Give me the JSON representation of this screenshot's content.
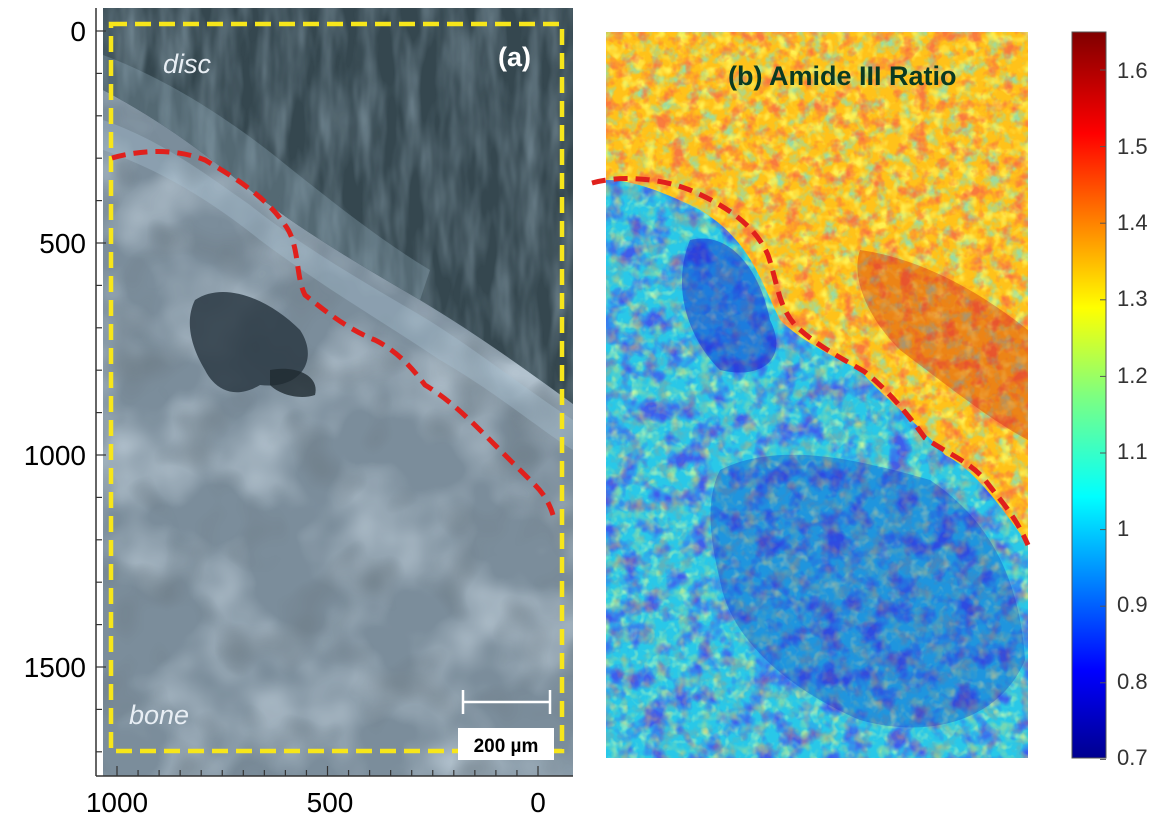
{
  "panel_a": {
    "label": "(a)",
    "text_disc": "disc",
    "text_bone": "bone",
    "scale_bar_label": "200 µm",
    "y_ticks": [
      "0",
      "500",
      "1000",
      "1500"
    ],
    "x_ticks": [
      "1000",
      "500",
      "0"
    ]
  },
  "panel_b": {
    "title": "(b) Amide III Ratio"
  },
  "colorbar": {
    "ticks": [
      "1.6",
      "1.5",
      "1.4",
      "1.3",
      "1.2",
      "1.1",
      "1",
      "0.9",
      "0.8",
      "0.7"
    ],
    "min": 0.7,
    "max": 1.65,
    "colormap": "jet"
  },
  "colors": {
    "roi_box": "#f7e61a",
    "boundary_line": "#e0201c",
    "microscopy_bg": "#3f5564"
  }
}
